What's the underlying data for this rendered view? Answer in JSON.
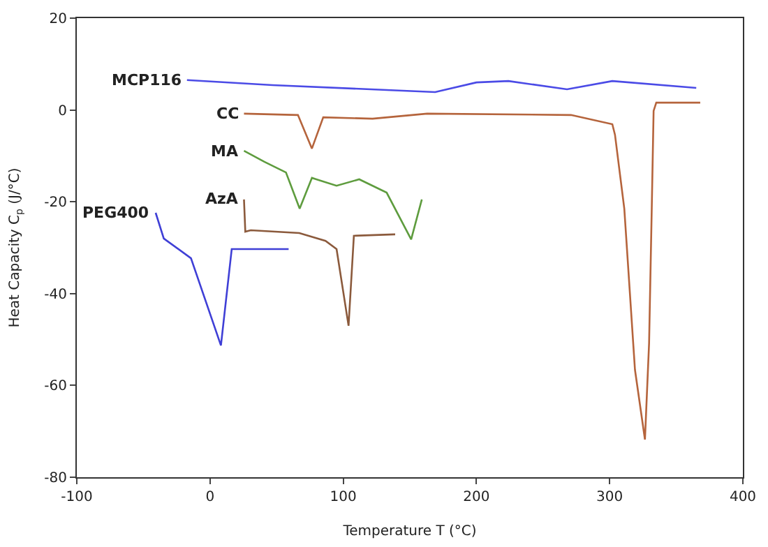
{
  "chart_data": {
    "type": "line",
    "xlabel": "Temperature T (°C)",
    "ylabel": "Heat Capacity C$_{p}$ (J/°C)",
    "xlim": [
      -100,
      400
    ],
    "xticks": [
      -100,
      0,
      100,
      200,
      300,
      400
    ],
    "ylim": [
      -80,
      20
    ],
    "yticks": [
      -80,
      -60,
      -40,
      -20,
      0,
      20
    ],
    "series": [
      {
        "name": "MCP116",
        "color": "#4b4be6",
        "x": [
          -17.3,
          47,
          169,
          200,
          224,
          268,
          302,
          365
        ],
        "values": [
          6.5,
          5.4,
          3.9,
          6.0,
          6.3,
          4.5,
          6.3,
          4.8
        ]
      },
      {
        "name": "CC",
        "color": "#b5643c",
        "x": [
          25.5,
          66,
          76.5,
          85,
          122,
          163,
          271,
          302,
          304,
          311,
          319,
          326.5,
          329.6,
          331.6,
          333,
          335,
          368
        ],
        "values": [
          -0.8,
          -1.1,
          -8.4,
          -1.6,
          -1.9,
          -0.8,
          -1.1,
          -3.1,
          -5.4,
          -21.5,
          -56.6,
          -71.8,
          -50.8,
          -21.5,
          -0.2,
          1.6,
          1.6
        ]
      },
      {
        "name": "MA",
        "color": "#5e9c3e",
        "x": [
          25.5,
          40.8,
          57,
          67.3,
          76.5,
          95,
          112,
          132.6,
          151,
          159
        ],
        "values": [
          -8.9,
          -11.3,
          -13.6,
          -21.5,
          -14.8,
          -16.5,
          -15.1,
          -18,
          -28.2,
          -19.5
        ]
      },
      {
        "name": "AzA",
        "color": "#8b5a3c",
        "x": [
          25.5,
          26.5,
          30.6,
          67,
          86.7,
          95,
          104,
          108,
          139
        ],
        "values": [
          -19.5,
          -26.5,
          -26.2,
          -26.8,
          -28.5,
          -30.3,
          -47,
          -27.4,
          -27.1
        ]
      },
      {
        "name": "PEG400",
        "color": "#3f3fd6",
        "x": [
          -40.8,
          -34.7,
          -14.3,
          8.2,
          16.3,
          59
        ],
        "values": [
          -22.4,
          -28,
          -32.3,
          -51.3,
          -30.3,
          -30.3
        ]
      }
    ]
  }
}
